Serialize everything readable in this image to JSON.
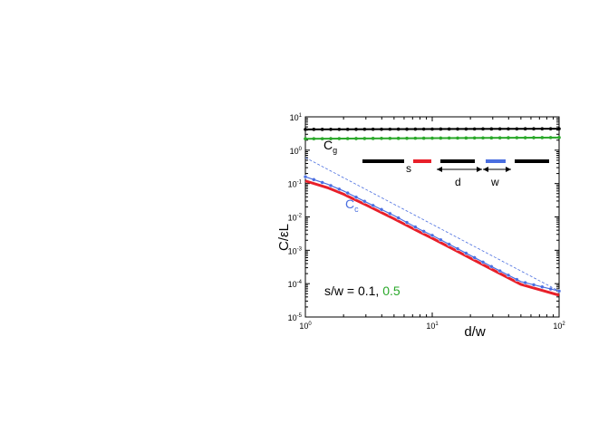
{
  "chart_data": {
    "type": "line",
    "title": "",
    "xlabel": "d/w",
    "ylabel_main": "C/",
    "ylabel_sym": "ε",
    "ylabel_tail": "L",
    "xscale": "log",
    "yscale": "log",
    "xlim": [
      1,
      100
    ],
    "ylim": [
      1e-05,
      10
    ],
    "grid": false,
    "x_ticks": [
      {
        "base": "10",
        "exp": "0",
        "value": 1
      },
      {
        "base": "10",
        "exp": "1",
        "value": 10
      },
      {
        "base": "10",
        "exp": "2",
        "value": 100
      }
    ],
    "y_ticks": [
      {
        "base": "10",
        "exp": "1",
        "value": 10
      },
      {
        "base": "10",
        "exp": "0",
        "value": 1
      },
      {
        "base": "10",
        "exp": "-1",
        "value": 0.1
      },
      {
        "base": "10",
        "exp": "-2",
        "value": 0.01
      },
      {
        "base": "10",
        "exp": "-3",
        "value": 0.001
      },
      {
        "base": "10",
        "exp": "-4",
        "value": 0.0001
      },
      {
        "base": "10",
        "exp": "-5",
        "value": 1e-05
      }
    ],
    "series": [
      {
        "color": "#000000",
        "style": "solid-dots",
        "x": [
          1,
          100
        ],
        "y": [
          4.2,
          4.4
        ],
        "line": true
      },
      {
        "color": "#2aa82a",
        "style": "solid-dots",
        "x": [
          1,
          100
        ],
        "y": [
          2.2,
          2.4
        ],
        "line": true
      },
      {
        "color": "#e8202a",
        "style": "solid",
        "x": [
          1,
          1.5,
          2,
          3,
          5,
          8,
          10,
          20,
          30,
          50,
          100
        ],
        "y": [
          0.12,
          0.075,
          0.048,
          0.023,
          0.0088,
          0.0035,
          0.0023,
          0.00058,
          0.00026,
          9.5e-05,
          4.5e-05
        ]
      },
      {
        "color": "#4a6ee0",
        "style": "dots",
        "x": [
          1,
          1.5,
          2,
          3,
          5,
          8,
          10,
          20,
          30,
          50,
          100
        ],
        "y": [
          0.16,
          0.095,
          0.06,
          0.028,
          0.011,
          0.0042,
          0.0028,
          0.0007,
          0.00031,
          0.000115,
          6e-05
        ]
      },
      {
        "color": "#4a6ee0",
        "style": "dashed",
        "x": [
          1,
          100
        ],
        "y": [
          0.6,
          6e-05
        ]
      }
    ],
    "annotations": {
      "cg_label": "C",
      "cg_sub": "g",
      "cc_label": "C",
      "cc_sub": "c",
      "ratio_prefix": "s/w = 0.1, ",
      "ratio_green": "0.5",
      "inset_s": "s",
      "inset_d": "d",
      "inset_w": "w"
    },
    "colors": {
      "black": "#000000",
      "green": "#2aa82a",
      "red": "#e8202a",
      "blue": "#4a6ee0"
    }
  }
}
